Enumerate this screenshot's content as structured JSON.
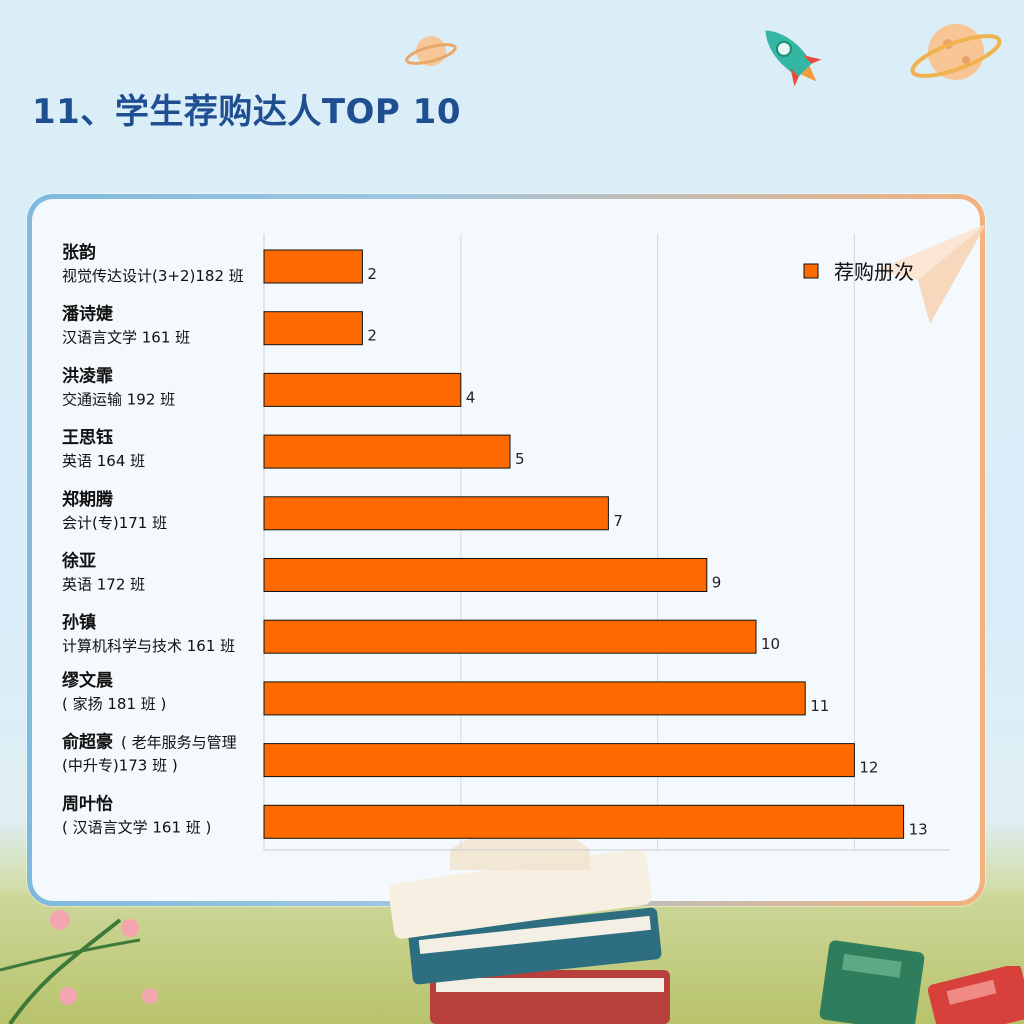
{
  "page": {
    "title": "11、学生荐购达人TOP 10"
  },
  "chart_data": {
    "type": "bar",
    "orientation": "horizontal",
    "categories": [
      {
        "name": "张韵",
        "class_lines": [
          "视觉传达设计(3+2)182 班"
        ]
      },
      {
        "name": "潘诗婕",
        "class_lines": [
          "汉语言文学 161 班"
        ]
      },
      {
        "name": "洪凌霏",
        "class_lines": [
          "交通运输 192 班"
        ]
      },
      {
        "name": "王思钰",
        "class_lines": [
          "英语 164 班"
        ]
      },
      {
        "name": "郑期腾",
        "class_lines": [
          "会计(专)171 班"
        ]
      },
      {
        "name": "徐亚",
        "class_lines": [
          "英语 172 班"
        ]
      },
      {
        "name": "孙镇",
        "class_lines": [
          "计算机科学与技术 161 班"
        ]
      },
      {
        "name": "缪文晨",
        "class_lines": [
          "( 家扬 181 班 )"
        ]
      },
      {
        "name": "俞超豪",
        "name_suffix": "( 老年服务与管理",
        "class_lines": [
          "(中升专)173 班 )"
        ]
      },
      {
        "name": "周叶怡",
        "class_lines": [
          "( 汉语言文学 161 班 )"
        ]
      }
    ],
    "series": [
      {
        "name": "荐购册次",
        "values": [
          2,
          2,
          4,
          5,
          7,
          9,
          10,
          11,
          12,
          13
        ]
      }
    ],
    "xlim": [
      0,
      14
    ],
    "grid": true,
    "legend": "top-right",
    "colors": {
      "bar": "#ff6a00",
      "bar_edge": "#111111",
      "grid": "#d9d9d9"
    }
  }
}
